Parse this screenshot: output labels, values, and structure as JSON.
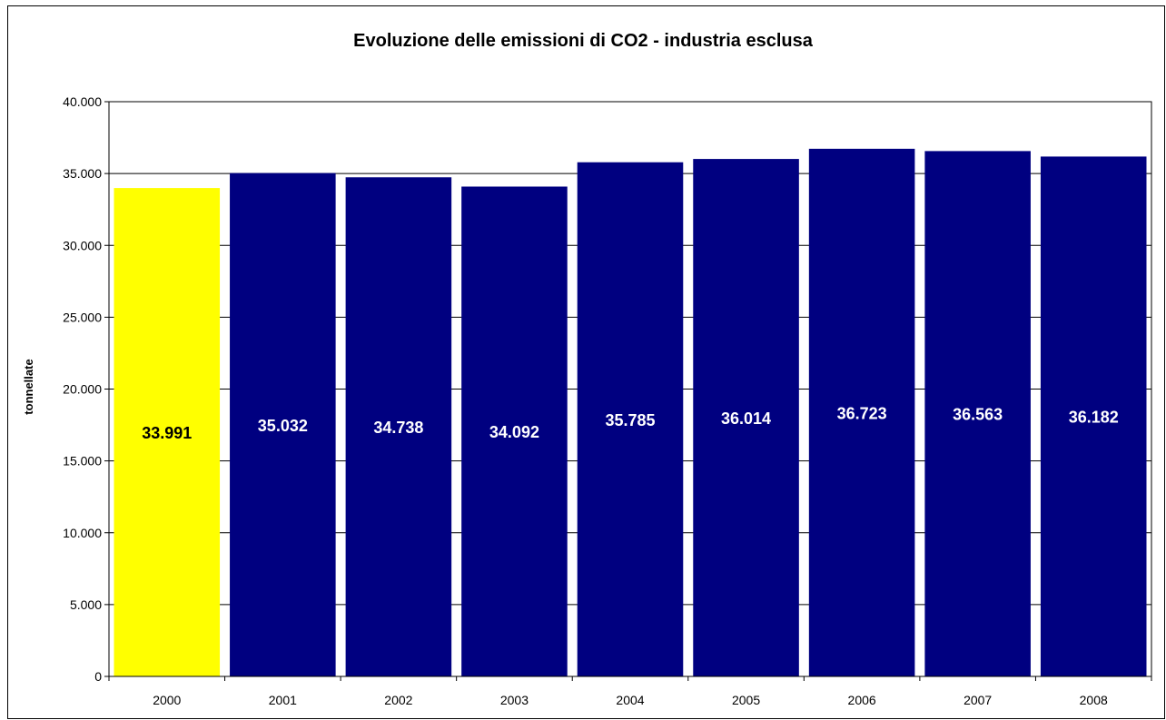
{
  "chart_data": {
    "type": "bar",
    "title": "Evoluzione delle emissioni di CO2 - industria esclusa",
    "xlabel": "",
    "ylabel": "tonnellate",
    "categories": [
      "2000",
      "2001",
      "2002",
      "2003",
      "2004",
      "2005",
      "2006",
      "2007",
      "2008"
    ],
    "values": [
      33991,
      35032,
      34738,
      34092,
      35785,
      36014,
      36723,
      36563,
      36182
    ],
    "data_labels": [
      "33.991",
      "35.032",
      "34.738",
      "34.092",
      "35.785",
      "36.014",
      "36.723",
      "36.563",
      "36.182"
    ],
    "ylim": [
      0,
      40000
    ],
    "yticks": [
      0,
      5000,
      10000,
      15000,
      20000,
      25000,
      30000,
      35000,
      40000
    ],
    "ytick_labels": [
      "0",
      "5.000",
      "10.000",
      "15.000",
      "20.000",
      "25.000",
      "30.000",
      "35.000",
      "40.000"
    ],
    "grid": true,
    "legend": "none",
    "colors": {
      "highlight_bar": "#FFFF00",
      "bar": "#000080",
      "highlight_label": "#000000",
      "label": "#FFFFFF",
      "plot_background": "#FFFFFF",
      "page_background": "#FFFFFF"
    },
    "highlight_index": 0
  }
}
